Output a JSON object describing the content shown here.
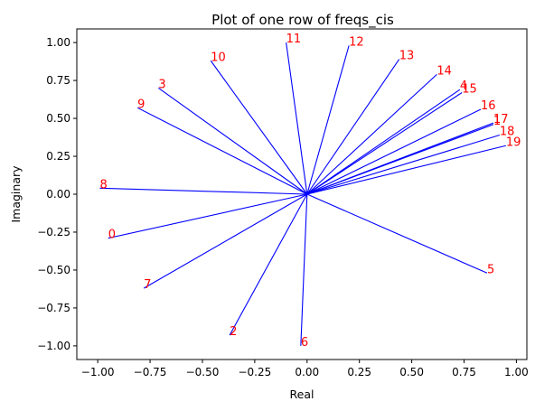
{
  "chart_data": {
    "type": "line",
    "title": "Plot of one row of freqs_cis",
    "xlabel": "Real",
    "ylabel": "Imaginary",
    "xlim": [
      -1.1,
      1.05
    ],
    "ylim": [
      -1.09,
      1.09
    ],
    "xticks": [
      -1.0,
      -0.75,
      -0.5,
      -0.25,
      0.0,
      0.25,
      0.5,
      0.75,
      1.0
    ],
    "xtick_labels": [
      "−1.00",
      "−0.75",
      "−0.50",
      "−0.25",
      "0.00",
      "0.25",
      "0.50",
      "0.75",
      "1.00"
    ],
    "yticks": [
      -1.0,
      -0.75,
      -0.5,
      -0.25,
      0.0,
      0.25,
      0.5,
      0.75,
      1.0
    ],
    "ytick_labels": [
      "−1.00",
      "−0.75",
      "−0.50",
      "−0.25",
      "0.00",
      "0.25",
      "0.50",
      "0.75",
      "1.00"
    ],
    "line_color": "#0000ff",
    "label_color": "#ff0000",
    "grid": false,
    "points": [
      {
        "label": "0",
        "x": -0.95,
        "y": -0.29
      },
      {
        "label": "1",
        "x": 0.89,
        "y": 0.46
      },
      {
        "label": "2",
        "x": -0.37,
        "y": -0.93
      },
      {
        "label": "3",
        "x": -0.71,
        "y": 0.7
      },
      {
        "label": "4",
        "x": 0.73,
        "y": 0.69
      },
      {
        "label": "5",
        "x": 0.86,
        "y": -0.52
      },
      {
        "label": "6",
        "x": -0.03,
        "y": -1.0
      },
      {
        "label": "7",
        "x": -0.78,
        "y": -0.62
      },
      {
        "label": "8",
        "x": -0.99,
        "y": 0.04
      },
      {
        "label": "9",
        "x": -0.81,
        "y": 0.57
      },
      {
        "label": "10",
        "x": -0.46,
        "y": 0.88
      },
      {
        "label": "11",
        "x": -0.1,
        "y": 1.0
      },
      {
        "label": "12",
        "x": 0.2,
        "y": 0.98
      },
      {
        "label": "13",
        "x": 0.44,
        "y": 0.89
      },
      {
        "label": "14",
        "x": 0.62,
        "y": 0.79
      },
      {
        "label": "15",
        "x": 0.74,
        "y": 0.67
      },
      {
        "label": "16",
        "x": 0.83,
        "y": 0.56
      },
      {
        "label": "17",
        "x": 0.89,
        "y": 0.47
      },
      {
        "label": "18",
        "x": 0.92,
        "y": 0.39
      },
      {
        "label": "19",
        "x": 0.95,
        "y": 0.32
      }
    ]
  }
}
